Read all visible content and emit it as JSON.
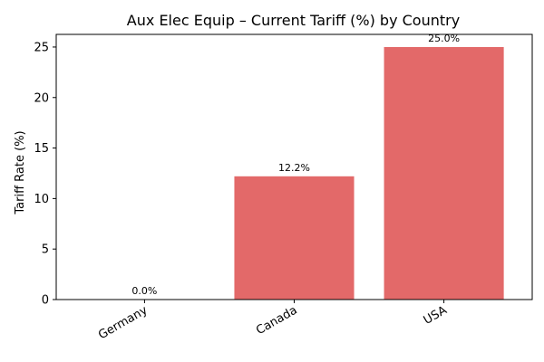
{
  "chart_data": {
    "type": "bar",
    "title": "Aux Elec Equip – Current Tariff (%) by Country",
    "xlabel": "",
    "ylabel": "Tariff Rate (%)",
    "categories": [
      "Germany",
      "Canada",
      "USA"
    ],
    "values": [
      0.0,
      12.2,
      25.0
    ],
    "data_labels": [
      "0.0%",
      "12.2%",
      "25.0%"
    ],
    "ylim": [
      0,
      26.25
    ],
    "yticks": [
      0,
      5,
      10,
      15,
      20,
      25
    ],
    "bar_color": "#e36969",
    "grid": false,
    "legend": "none"
  }
}
